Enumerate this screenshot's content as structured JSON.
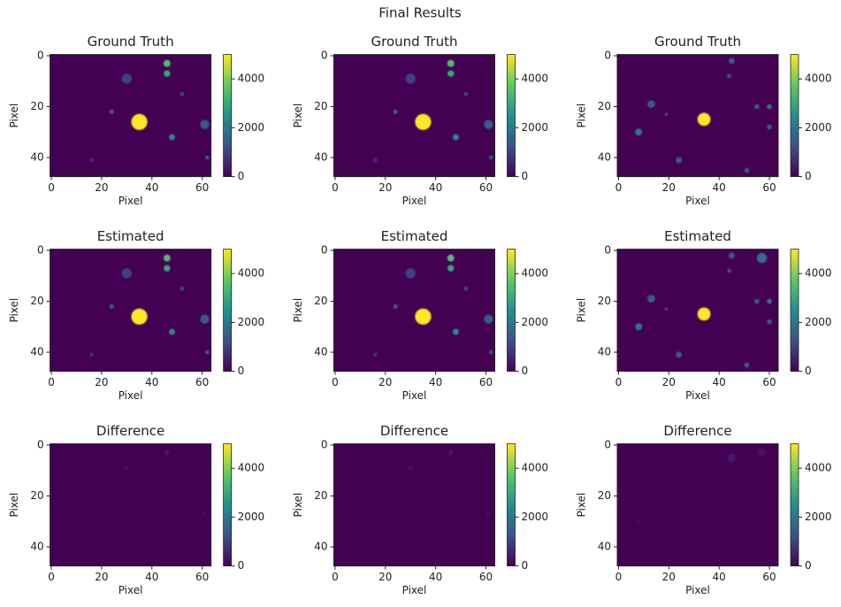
{
  "title": "Final Results",
  "chart_data": [
    {
      "type": "heatmap",
      "title": "Ground Truth",
      "xlabel": "Pixel",
      "ylabel": "Pixel",
      "xlim": [
        -0.5,
        63.5
      ],
      "ylim": [
        47.5,
        -0.5
      ],
      "xticks": [
        0,
        20,
        40,
        60
      ],
      "yticks": [
        0,
        20,
        40
      ],
      "clim": [
        0,
        5000
      ],
      "cticks": [
        0,
        2000,
        4000
      ],
      "blobs": [
        {
          "x": 35,
          "y": 26,
          "r": 3.2,
          "value": 5000
        },
        {
          "x": 46,
          "y": 3,
          "r": 1.4,
          "value": 3500
        },
        {
          "x": 46,
          "y": 7,
          "r": 1.3,
          "value": 3000
        },
        {
          "x": 30,
          "y": 9,
          "r": 2,
          "value": 1000
        },
        {
          "x": 61,
          "y": 27,
          "r": 1.8,
          "value": 1500
        },
        {
          "x": 48,
          "y": 32,
          "r": 1.2,
          "value": 2500
        },
        {
          "x": 24,
          "y": 22,
          "r": 0.9,
          "value": 1500
        },
        {
          "x": 52,
          "y": 15,
          "r": 0.8,
          "value": 1200
        },
        {
          "x": 16,
          "y": 41,
          "r": 0.8,
          "value": 800
        },
        {
          "x": 62,
          "y": 40,
          "r": 0.8,
          "value": 1500
        }
      ]
    },
    {
      "type": "heatmap",
      "title": "Ground Truth",
      "xlabel": "Pixel",
      "ylabel": "Pixel",
      "xlim": [
        -0.5,
        63.5
      ],
      "ylim": [
        47.5,
        -0.5
      ],
      "xticks": [
        0,
        20,
        40,
        60
      ],
      "yticks": [
        0,
        20,
        40
      ],
      "clim": [
        0,
        5000
      ],
      "cticks": [
        0,
        2000,
        4000
      ],
      "blobs": [
        {
          "x": 35,
          "y": 26,
          "r": 3.2,
          "value": 5000
        },
        {
          "x": 46,
          "y": 3,
          "r": 1.4,
          "value": 3500
        },
        {
          "x": 46,
          "y": 7,
          "r": 1.3,
          "value": 3000
        },
        {
          "x": 30,
          "y": 9,
          "r": 2,
          "value": 1000
        },
        {
          "x": 61,
          "y": 27,
          "r": 1.8,
          "value": 1500
        },
        {
          "x": 48,
          "y": 32,
          "r": 1.2,
          "value": 2500
        },
        {
          "x": 24,
          "y": 22,
          "r": 0.9,
          "value": 1500
        },
        {
          "x": 52,
          "y": 15,
          "r": 0.8,
          "value": 1200
        },
        {
          "x": 16,
          "y": 41,
          "r": 0.8,
          "value": 800
        },
        {
          "x": 62,
          "y": 40,
          "r": 0.8,
          "value": 1500
        }
      ]
    },
    {
      "type": "heatmap",
      "title": "Ground Truth",
      "xlabel": "Pixel",
      "ylabel": "Pixel",
      "xlim": [
        -0.5,
        63.5
      ],
      "ylim": [
        47.5,
        -0.5
      ],
      "xticks": [
        0,
        20,
        40,
        60
      ],
      "yticks": [
        0,
        20,
        40
      ],
      "clim": [
        0,
        5000
      ],
      "cticks": [
        0,
        2000,
        4000
      ],
      "blobs": [
        {
          "x": 34,
          "y": 25,
          "r": 2.6,
          "value": 5000
        },
        {
          "x": 13,
          "y": 19,
          "r": 1.5,
          "value": 1500
        },
        {
          "x": 8,
          "y": 30,
          "r": 1.4,
          "value": 2000
        },
        {
          "x": 24,
          "y": 41,
          "r": 1.2,
          "value": 1500
        },
        {
          "x": 45,
          "y": 2,
          "r": 1.2,
          "value": 1500
        },
        {
          "x": 44,
          "y": 8,
          "r": 0.8,
          "value": 1500
        },
        {
          "x": 55,
          "y": 20,
          "r": 1,
          "value": 1500
        },
        {
          "x": 60,
          "y": 20,
          "r": 1,
          "value": 2000
        },
        {
          "x": 60,
          "y": 28,
          "r": 1,
          "value": 1500
        },
        {
          "x": 19,
          "y": 23,
          "r": 0.6,
          "value": 1500
        },
        {
          "x": 51,
          "y": 45,
          "r": 1,
          "value": 1500
        }
      ]
    },
    {
      "type": "heatmap",
      "title": "Estimated",
      "xlabel": "Pixel",
      "ylabel": "Pixel",
      "xlim": [
        -0.5,
        63.5
      ],
      "ylim": [
        47.5,
        -0.5
      ],
      "xticks": [
        0,
        20,
        40,
        60
      ],
      "yticks": [
        0,
        20,
        40
      ],
      "clim": [
        0,
        5000
      ],
      "cticks": [
        0,
        2000,
        4000
      ],
      "blobs": [
        {
          "x": 35,
          "y": 26,
          "r": 3.2,
          "value": 5000
        },
        {
          "x": 46,
          "y": 3,
          "r": 1.4,
          "value": 3500
        },
        {
          "x": 46,
          "y": 7,
          "r": 1.3,
          "value": 3000
        },
        {
          "x": 30,
          "y": 9,
          "r": 2,
          "value": 1000
        },
        {
          "x": 61,
          "y": 27,
          "r": 1.8,
          "value": 1500
        },
        {
          "x": 48,
          "y": 32,
          "r": 1.2,
          "value": 2500
        },
        {
          "x": 24,
          "y": 22,
          "r": 0.9,
          "value": 1500
        },
        {
          "x": 52,
          "y": 15,
          "r": 0.8,
          "value": 1200
        },
        {
          "x": 16,
          "y": 41,
          "r": 0.8,
          "value": 800
        },
        {
          "x": 62,
          "y": 40,
          "r": 0.8,
          "value": 1500
        }
      ]
    },
    {
      "type": "heatmap",
      "title": "Estimated",
      "xlabel": "Pixel",
      "ylabel": "Pixel",
      "xlim": [
        -0.5,
        63.5
      ],
      "ylim": [
        47.5,
        -0.5
      ],
      "xticks": [
        0,
        20,
        40,
        60
      ],
      "yticks": [
        0,
        20,
        40
      ],
      "clim": [
        0,
        5000
      ],
      "cticks": [
        0,
        2000,
        4000
      ],
      "blobs": [
        {
          "x": 35,
          "y": 26,
          "r": 3.2,
          "value": 5000
        },
        {
          "x": 46,
          "y": 3,
          "r": 1.4,
          "value": 3500
        },
        {
          "x": 46,
          "y": 7,
          "r": 1.3,
          "value": 3000
        },
        {
          "x": 30,
          "y": 9,
          "r": 2,
          "value": 1000
        },
        {
          "x": 61,
          "y": 27,
          "r": 1.8,
          "value": 1500
        },
        {
          "x": 48,
          "y": 32,
          "r": 1.2,
          "value": 2500
        },
        {
          "x": 24,
          "y": 22,
          "r": 0.9,
          "value": 1500
        },
        {
          "x": 52,
          "y": 15,
          "r": 0.8,
          "value": 1200
        },
        {
          "x": 16,
          "y": 41,
          "r": 0.8,
          "value": 800
        },
        {
          "x": 62,
          "y": 40,
          "r": 0.8,
          "value": 1500
        }
      ]
    },
    {
      "type": "heatmap",
      "title": "Estimated",
      "xlabel": "Pixel",
      "ylabel": "Pixel",
      "xlim": [
        -0.5,
        63.5
      ],
      "ylim": [
        47.5,
        -0.5
      ],
      "xticks": [
        0,
        20,
        40,
        60
      ],
      "yticks": [
        0,
        20,
        40
      ],
      "clim": [
        0,
        5000
      ],
      "cticks": [
        0,
        2000,
        4000
      ],
      "blobs": [
        {
          "x": 34,
          "y": 25,
          "r": 2.6,
          "value": 5000
        },
        {
          "x": 13,
          "y": 19,
          "r": 1.5,
          "value": 1500
        },
        {
          "x": 8,
          "y": 30,
          "r": 1.4,
          "value": 2000
        },
        {
          "x": 24,
          "y": 41,
          "r": 1.2,
          "value": 1500
        },
        {
          "x": 45,
          "y": 2,
          "r": 1.2,
          "value": 1500
        },
        {
          "x": 57,
          "y": 3,
          "r": 2,
          "value": 1800
        },
        {
          "x": 44,
          "y": 8,
          "r": 0.8,
          "value": 1500
        },
        {
          "x": 55,
          "y": 20,
          "r": 1,
          "value": 1500
        },
        {
          "x": 60,
          "y": 20,
          "r": 1,
          "value": 2000
        },
        {
          "x": 60,
          "y": 28,
          "r": 1,
          "value": 1500
        },
        {
          "x": 19,
          "y": 23,
          "r": 0.6,
          "value": 1500
        },
        {
          "x": 51,
          "y": 45,
          "r": 1,
          "value": 1500
        }
      ]
    },
    {
      "type": "heatmap",
      "title": "Difference",
      "xlabel": "Pixel",
      "ylabel": "Pixel",
      "xlim": [
        -0.5,
        63.5
      ],
      "ylim": [
        47.5,
        -0.5
      ],
      "xticks": [
        0,
        20,
        40,
        60
      ],
      "yticks": [
        0,
        20,
        40
      ],
      "clim": [
        0,
        5000
      ],
      "cticks": [
        0,
        2000,
        4000
      ],
      "blobs": [
        {
          "x": 46,
          "y": 3,
          "r": 1,
          "value": 400
        },
        {
          "x": 61,
          "y": 27,
          "r": 1,
          "value": 250
        },
        {
          "x": 30,
          "y": 9,
          "r": 1,
          "value": 200
        }
      ]
    },
    {
      "type": "heatmap",
      "title": "Difference",
      "xlabel": "Pixel",
      "ylabel": "Pixel",
      "xlim": [
        -0.5,
        63.5
      ],
      "ylim": [
        47.5,
        -0.5
      ],
      "xticks": [
        0,
        20,
        40,
        60
      ],
      "yticks": [
        0,
        20,
        40
      ],
      "clim": [
        0,
        5000
      ],
      "cticks": [
        0,
        2000,
        4000
      ],
      "blobs": [
        {
          "x": 46,
          "y": 3,
          "r": 1,
          "value": 400
        },
        {
          "x": 61,
          "y": 27,
          "r": 1,
          "value": 250
        },
        {
          "x": 30,
          "y": 9,
          "r": 1,
          "value": 200
        }
      ]
    },
    {
      "type": "heatmap",
      "title": "Difference",
      "xlabel": "Pixel",
      "ylabel": "Pixel",
      "xlim": [
        -0.5,
        63.5
      ],
      "ylim": [
        47.5,
        -0.5
      ],
      "xticks": [
        0,
        20,
        40,
        60
      ],
      "yticks": [
        0,
        20,
        40
      ],
      "clim": [
        0,
        5000
      ],
      "cticks": [
        0,
        2000,
        4000
      ],
      "blobs": [
        {
          "x": 45,
          "y": 5,
          "r": 1.5,
          "value": 400
        },
        {
          "x": 57,
          "y": 3,
          "r": 1.5,
          "value": 300
        },
        {
          "x": 8,
          "y": 30,
          "r": 1,
          "value": 250
        }
      ]
    }
  ]
}
